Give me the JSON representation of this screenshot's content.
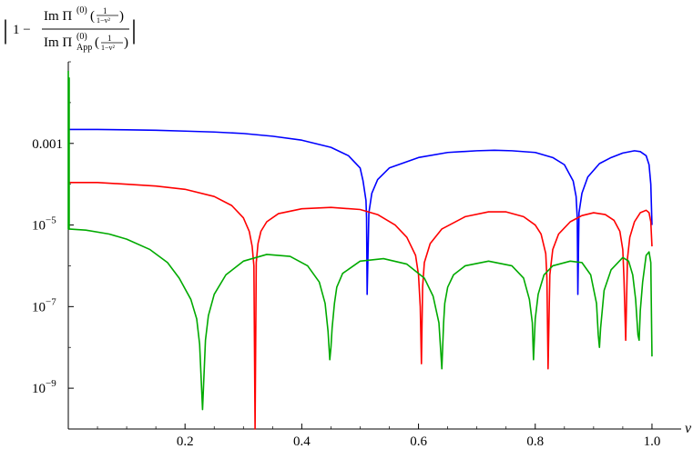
{
  "chart_data": {
    "type": "line",
    "title": "",
    "xlabel": "v",
    "ylabel": "| 1 − Im Π(0)(1/(1−v²)) / Im Π(0)App(1/(1−v²)) |",
    "ylabel_parts": {
      "bar_left": "|",
      "bar_right": "|",
      "one_minus": "1 −",
      "numerator": "Im Π",
      "num_sup": "(0)",
      "num_arg": "(1/(1−v²))",
      "denominator": "Im Π",
      "den_sup": "(0)",
      "den_sub": "App",
      "den_arg": "(1/(1−v²))",
      "frac_num": "1",
      "frac_den": "1−v²"
    },
    "xlim": [
      0,
      1.05
    ],
    "ylim": [
      1e-10,
      0.1
    ],
    "yscale": "log",
    "grid": false,
    "legend": "none",
    "xticks": [
      {
        "value": 0.2,
        "label": "0.2"
      },
      {
        "value": 0.4,
        "label": "0.4"
      },
      {
        "value": 0.6,
        "label": "0.6"
      },
      {
        "value": 0.8,
        "label": "0.8"
      },
      {
        "value": 1.0,
        "label": "1.0"
      }
    ],
    "yticks": [
      {
        "value": 0.001,
        "label": "0.001",
        "base": "",
        "exp": ""
      },
      {
        "value": 1e-05,
        "label": "10−5",
        "base": "10",
        "exp": "−5"
      },
      {
        "value": 1e-07,
        "label": "10−7",
        "base": "10",
        "exp": "−7"
      },
      {
        "value": 1e-09,
        "label": "10−9",
        "base": "10",
        "exp": "−9"
      }
    ],
    "series": [
      {
        "color": "#0000ff",
        "x": [
          0.0005,
          0.05,
          0.1,
          0.15,
          0.2,
          0.25,
          0.3,
          0.35,
          0.4,
          0.45,
          0.48,
          0.5,
          0.505,
          0.51,
          0.511,
          0.512,
          0.515,
          0.52,
          0.53,
          0.55,
          0.6,
          0.65,
          0.7,
          0.73,
          0.76,
          0.8,
          0.83,
          0.85,
          0.865,
          0.87,
          0.872,
          0.873,
          0.875,
          0.88,
          0.89,
          0.91,
          0.93,
          0.95,
          0.97,
          0.98,
          0.99,
          0.995,
          0.998,
          1.0
        ],
        "y": [
          0.0022,
          0.0022,
          0.00215,
          0.0021,
          0.002,
          0.0019,
          0.00175,
          0.0015,
          0.0012,
          0.0008,
          0.0005,
          0.00025,
          0.00012,
          4e-05,
          1.5e-05,
          2e-07,
          2e-05,
          6e-05,
          0.00013,
          0.00025,
          0.00045,
          0.0006,
          0.00066,
          0.00068,
          0.00066,
          0.0006,
          0.00045,
          0.0003,
          0.00012,
          5e-05,
          1.5e-05,
          2e-07,
          2e-05,
          6e-05,
          0.00015,
          0.00032,
          0.00045,
          0.00058,
          0.00066,
          0.00063,
          0.0005,
          0.0003,
          0.0001,
          1e-05
        ]
      },
      {
        "color": "#ff0000",
        "x": [
          0.0005,
          0.05,
          0.1,
          0.15,
          0.2,
          0.25,
          0.28,
          0.3,
          0.31,
          0.315,
          0.318,
          0.32,
          0.322,
          0.325,
          0.33,
          0.34,
          0.36,
          0.4,
          0.45,
          0.5,
          0.53,
          0.56,
          0.58,
          0.595,
          0.6,
          0.603,
          0.605,
          0.607,
          0.61,
          0.62,
          0.64,
          0.68,
          0.72,
          0.75,
          0.78,
          0.8,
          0.81,
          0.818,
          0.82,
          0.822,
          0.825,
          0.83,
          0.84,
          0.86,
          0.88,
          0.9,
          0.92,
          0.935,
          0.945,
          0.95,
          0.952,
          0.955,
          0.958,
          0.962,
          0.97,
          0.98,
          0.99,
          0.995,
          0.998,
          1.0
        ],
        "y": [
          0.00011,
          0.00011,
          0.0001,
          9e-05,
          7.5e-05,
          5e-05,
          3e-05,
          1.5e-05,
          7e-06,
          3e-06,
          1e-06,
          1e-10,
          1.2e-06,
          3.5e-06,
          7e-06,
          1.2e-05,
          1.9e-05,
          2.5e-05,
          2.7e-05,
          2.4e-05,
          1.8e-05,
          1e-05,
          5e-06,
          1.8e-06,
          6e-07,
          1e-07,
          4e-09,
          3e-07,
          1.2e-06,
          3.5e-06,
          8e-06,
          1.6e-05,
          2.1e-05,
          2.1e-05,
          1.6e-05,
          1e-05,
          6e-06,
          2e-06,
          5e-07,
          3e-09,
          6e-07,
          2.5e-06,
          6e-06,
          1.2e-05,
          1.7e-05,
          2e-05,
          1.8e-05,
          1.3e-05,
          7e-06,
          2.5e-06,
          5e-07,
          1.5e-08,
          1.5e-06,
          5e-06,
          1.2e-05,
          2e-05,
          2.3e-05,
          2e-05,
          1.2e-05,
          3e-06
        ]
      },
      {
        "color": "#00aa00",
        "x": [
          0.0005,
          0.03,
          0.07,
          0.1,
          0.14,
          0.17,
          0.19,
          0.21,
          0.22,
          0.225,
          0.23,
          0.235,
          0.24,
          0.25,
          0.27,
          0.3,
          0.34,
          0.38,
          0.41,
          0.43,
          0.44,
          0.445,
          0.448,
          0.45,
          0.452,
          0.456,
          0.46,
          0.47,
          0.5,
          0.54,
          0.58,
          0.61,
          0.625,
          0.635,
          0.64,
          0.643,
          0.645,
          0.65,
          0.66,
          0.68,
          0.72,
          0.76,
          0.78,
          0.79,
          0.795,
          0.797,
          0.8,
          0.805,
          0.815,
          0.83,
          0.86,
          0.88,
          0.895,
          0.905,
          0.908,
          0.91,
          0.912,
          0.918,
          0.93,
          0.95,
          0.96,
          0.967,
          0.972,
          0.976,
          0.978,
          0.98,
          0.984,
          0.99,
          0.995,
          0.998,
          1.0
        ],
        "y": [
          8e-06,
          7.5e-06,
          6e-06,
          4.5e-06,
          2.5e-06,
          1.2e-06,
          5e-07,
          1.5e-07,
          5e-08,
          1.2e-08,
          3e-10,
          1.5e-08,
          6e-08,
          2e-07,
          6e-07,
          1.3e-06,
          1.9e-06,
          1.7e-06,
          1e-06,
          4e-07,
          1.2e-07,
          2.5e-08,
          5e-09,
          1e-08,
          3e-08,
          1.2e-07,
          3e-07,
          6.5e-07,
          1.3e-06,
          1.5e-06,
          1.1e-06,
          5e-07,
          1.8e-07,
          4e-08,
          3e-09,
          4e-08,
          1.2e-07,
          3e-07,
          6e-07,
          1e-06,
          1.3e-06,
          1e-06,
          5e-07,
          1.5e-07,
          4e-08,
          5e-09,
          5e-08,
          2e-07,
          6e-07,
          1e-06,
          1.3e-06,
          1.2e-06,
          6e-07,
          1.2e-07,
          2e-08,
          1e-08,
          3e-08,
          2.5e-07,
          8e-07,
          1.6e-06,
          1.3e-06,
          6e-07,
          1.5e-07,
          2e-08,
          1.5e-08,
          8e-08,
          4e-07,
          1.8e-06,
          2.2e-06,
          1.2e-06,
          6e-09
        ]
      },
      {
        "color": "#00aa00",
        "x": [
          0.0,
          0.0,
          0.0015,
          0.0015,
          0.0015
        ],
        "y": [
          0.06,
          8e-06,
          8e-06,
          0.04,
          8e-06
        ]
      }
    ]
  }
}
